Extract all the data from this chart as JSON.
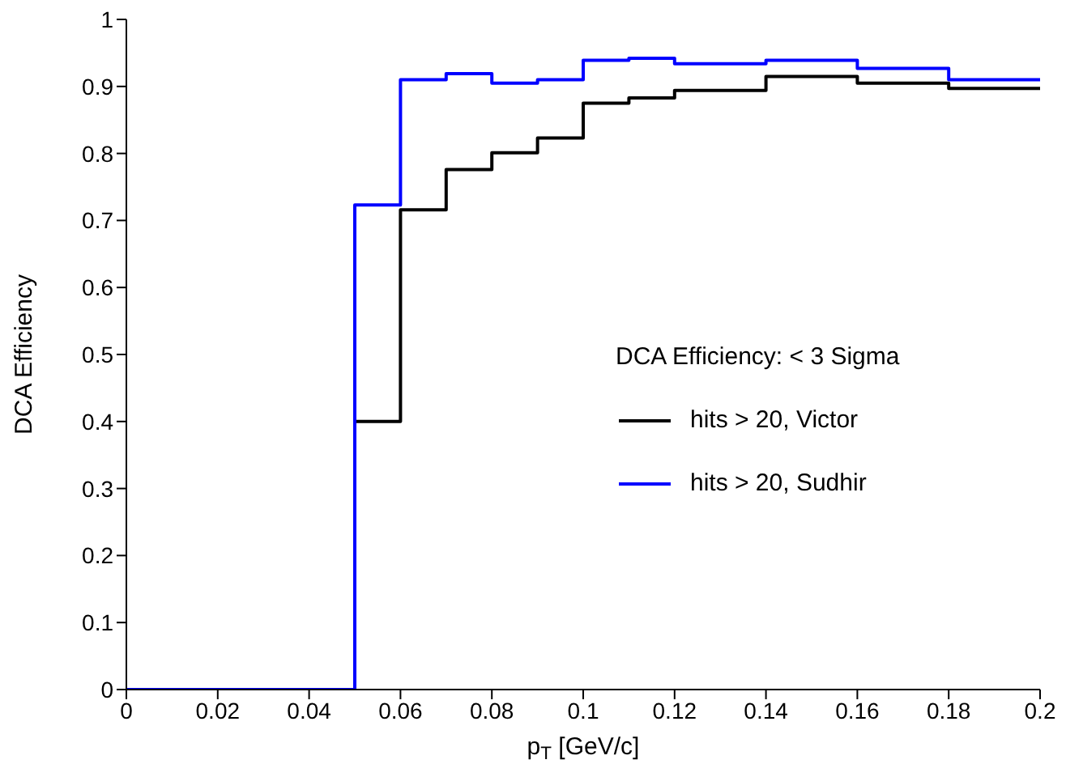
{
  "chart_data": {
    "type": "histogram",
    "xlabel": "p$_{T}$ [GeV/c]",
    "ylabel": "DCA Efficiency",
    "legend_title": "DCA Efficiency: < 3 Sigma",
    "legend": "right",
    "grid": false,
    "bins": [
      0,
      0.01,
      0.02,
      0.03,
      0.04,
      0.05,
      0.06,
      0.07,
      0.08,
      0.09,
      0.1,
      0.11,
      0.12,
      0.14,
      0.16,
      0.18,
      0.2
    ],
    "series": [
      {
        "name": "hits > 20, Victor",
        "color": "#000000",
        "values": [
          0,
          0,
          0,
          0,
          0,
          0.4,
          0.716,
          0.776,
          0.801,
          0.823,
          0.875,
          0.883,
          0.894,
          0.915,
          0.905,
          0.897
        ]
      },
      {
        "name": "hits > 20, Sudhir",
        "color": "#0000ff",
        "values": [
          0,
          0,
          0,
          0,
          0,
          0.723,
          0.91,
          0.919,
          0.905,
          0.91,
          0.939,
          0.942,
          0.934,
          0.939,
          0.927,
          0.91
        ]
      }
    ],
    "xlim": [
      0,
      0.2
    ],
    "xticks": [
      0,
      0.02,
      0.04,
      0.06,
      0.08,
      0.1,
      0.12,
      0.14,
      0.16,
      0.18,
      0.2
    ],
    "ylim": [
      0,
      1
    ],
    "yticks": [
      0,
      0.1,
      0.2,
      0.3,
      0.4,
      0.5,
      0.6,
      0.7,
      0.8,
      0.9,
      1
    ]
  }
}
